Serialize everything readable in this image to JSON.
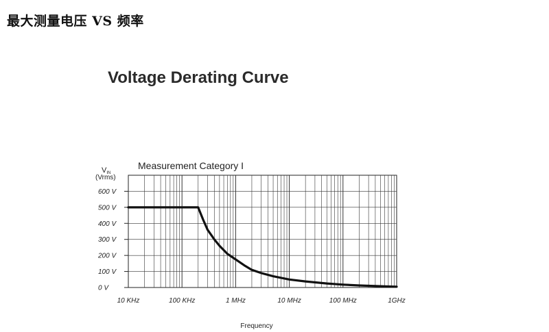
{
  "page": {
    "heading": "最大测量电压 VS 频率"
  },
  "chart_data": {
    "type": "line",
    "title": "Voltage Derating Curve",
    "subtitle": "Measurement Category I",
    "ylabel_main": "V",
    "ylabel_sub": "IN",
    "ylabel_unit": "(Vrms)",
    "xlabel": "Frequency",
    "x_scale": "log",
    "xlim": [
      10000,
      1000000000
    ],
    "ylim": [
      0,
      700
    ],
    "grid": true,
    "x_ticks": [
      {
        "value": 10000,
        "label": "10 KHz"
      },
      {
        "value": 100000,
        "label": "100 KHz"
      },
      {
        "value": 1000000,
        "label": "1 MHz"
      },
      {
        "value": 10000000,
        "label": "10 MHz"
      },
      {
        "value": 100000000,
        "label": "100 MHz"
      },
      {
        "value": 1000000000,
        "label": "1GHz"
      }
    ],
    "y_ticks": [
      {
        "value": 0,
        "label": "0 V"
      },
      {
        "value": 100,
        "label": "100 V"
      },
      {
        "value": 200,
        "label": "200 V"
      },
      {
        "value": 300,
        "label": "300 V"
      },
      {
        "value": 400,
        "label": "400 V"
      },
      {
        "value": 500,
        "label": "500 V"
      },
      {
        "value": 600,
        "label": "600 V"
      }
    ],
    "series": [
      {
        "points": [
          [
            10000,
            500
          ],
          [
            200000,
            500
          ],
          [
            250000,
            420
          ],
          [
            300000,
            360
          ],
          [
            400000,
            300
          ],
          [
            500000,
            260
          ],
          [
            700000,
            210
          ],
          [
            1000000,
            175
          ],
          [
            1500000,
            135
          ],
          [
            2000000,
            110
          ],
          [
            3000000,
            90
          ],
          [
            5000000,
            70
          ],
          [
            10000000,
            50
          ],
          [
            20000000,
            38
          ],
          [
            50000000,
            25
          ],
          [
            100000000,
            18
          ],
          [
            200000000,
            13
          ],
          [
            500000000,
            8
          ],
          [
            1000000000,
            5
          ]
        ],
        "color": "#111111"
      }
    ]
  }
}
